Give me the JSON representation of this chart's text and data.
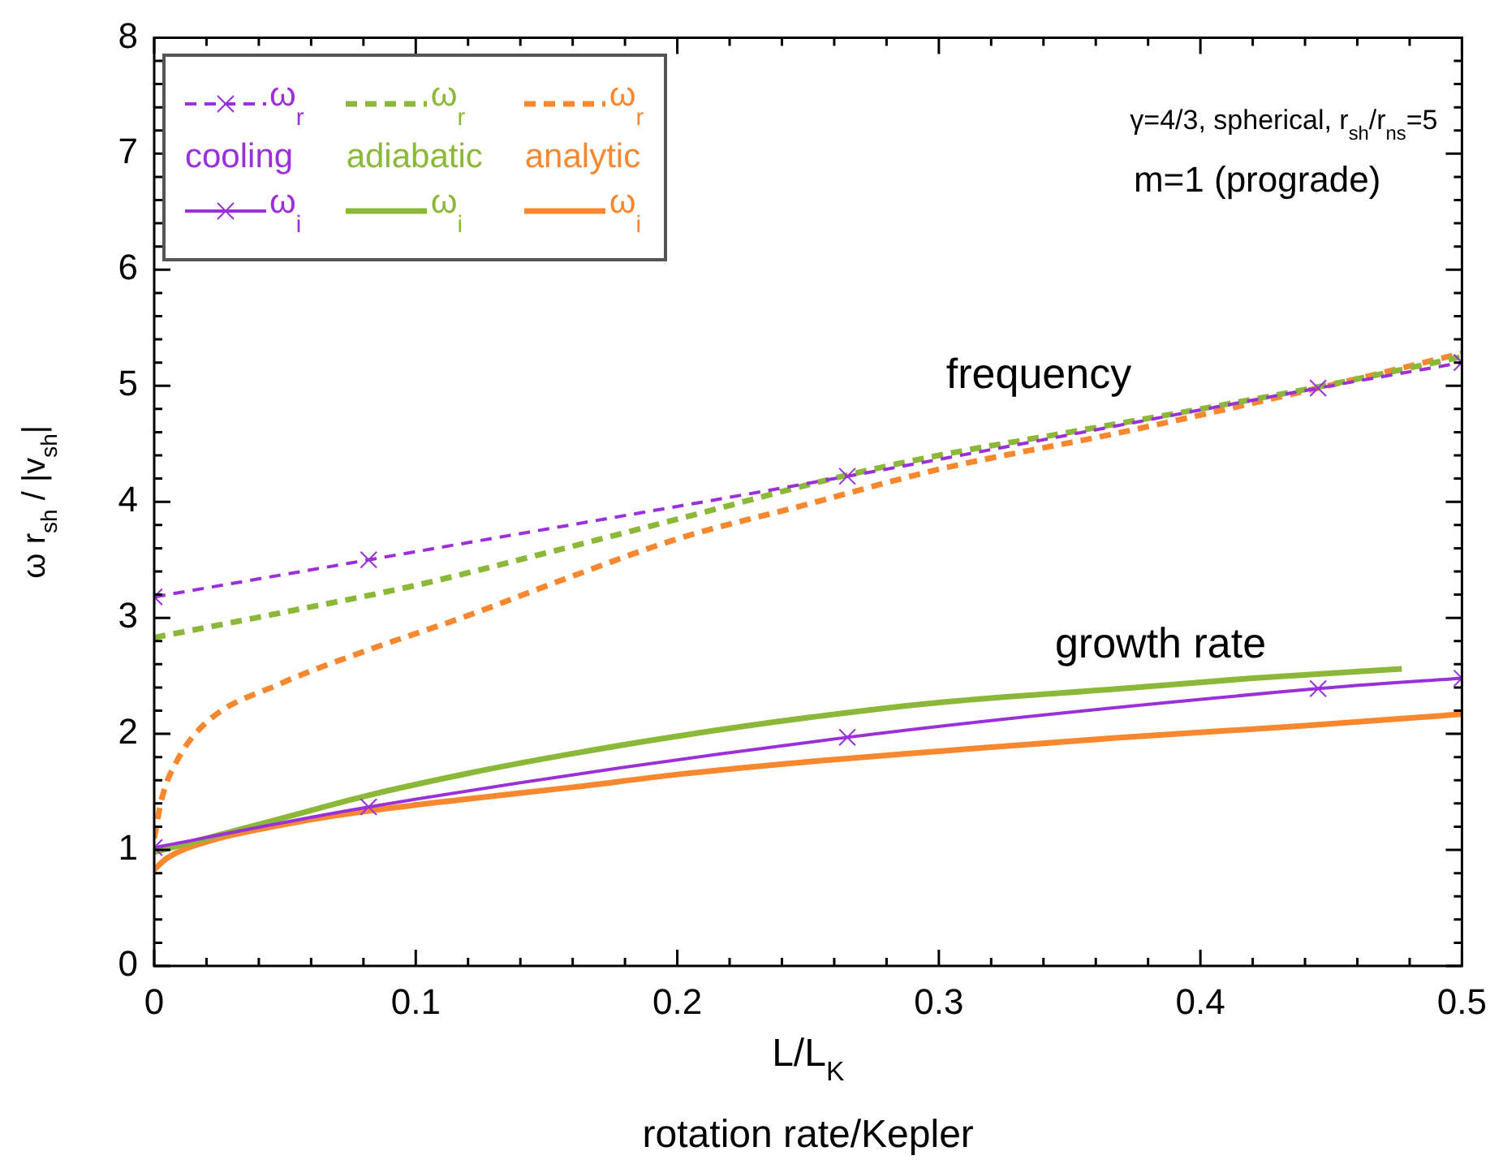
{
  "chart_data": {
    "type": "line",
    "xlabel": "L/L$_{K}$",
    "ylabel": "ω r$_{sh}$ / |v$_{sh}$|",
    "xlim": [
      0,
      0.5
    ],
    "ylim": [
      0,
      8
    ],
    "xticks": [
      0,
      {
        "value": 0.02,
        "label": null
      },
      {
        "value": 0.04,
        "label": null
      },
      {
        "value": 0.06,
        "label": null
      },
      {
        "value": 0.08,
        "label": null
      },
      0.1,
      {
        "value": 0.12,
        "label": null
      },
      {
        "value": 0.14,
        "label": null
      },
      {
        "value": 0.16,
        "label": null
      },
      {
        "value": 0.18,
        "label": null
      },
      0.2,
      {
        "value": 0.22,
        "label": null
      },
      {
        "value": 0.24,
        "label": null
      },
      {
        "value": 0.26,
        "label": null
      },
      {
        "value": 0.28,
        "label": null
      },
      0.3,
      {
        "value": 0.32,
        "label": null
      },
      {
        "value": 0.34,
        "label": null
      },
      {
        "value": 0.36,
        "label": null
      },
      {
        "value": 0.38,
        "label": null
      },
      0.4,
      {
        "value": 0.42,
        "label": null
      },
      {
        "value": 0.44,
        "label": null
      },
      {
        "value": 0.46,
        "label": null
      },
      {
        "value": 0.48,
        "label": null
      },
      0.5
    ],
    "yticks": [
      0,
      {
        "value": 0.2,
        "label": null
      },
      {
        "value": 0.4,
        "label": null
      },
      {
        "value": 0.6,
        "label": null
      },
      {
        "value": 0.8,
        "label": null
      },
      1,
      {
        "value": 1.2,
        "label": null
      },
      {
        "value": 1.4,
        "label": null
      },
      {
        "value": 1.6,
        "label": null
      },
      {
        "value": 1.8,
        "label": null
      },
      2,
      {
        "value": 2.2,
        "label": null
      },
      {
        "value": 2.4,
        "label": null
      },
      {
        "value": 2.6,
        "label": null
      },
      {
        "value": 2.8,
        "label": null
      },
      3,
      {
        "value": 3.2,
        "label": null
      },
      {
        "value": 3.4,
        "label": null
      },
      {
        "value": 3.6,
        "label": null
      },
      {
        "value": 3.8,
        "label": null
      },
      4,
      {
        "value": 4.2,
        "label": null
      },
      {
        "value": 4.4,
        "label": null
      },
      {
        "value": 4.6,
        "label": null
      },
      {
        "value": 4.8,
        "label": null
      },
      5,
      {
        "value": 5.2,
        "label": null
      },
      {
        "value": 5.4,
        "label": null
      },
      {
        "value": 5.6,
        "label": null
      },
      {
        "value": 5.8,
        "label": null
      },
      6,
      {
        "value": 6.2,
        "label": null
      },
      {
        "value": 6.4,
        "label": null
      },
      {
        "value": 6.6,
        "label": null
      },
      {
        "value": 6.8,
        "label": null
      },
      7,
      {
        "value": 7.2,
        "label": null
      },
      {
        "value": 7.4,
        "label": null
      },
      {
        "value": 7.6,
        "label": null
      },
      {
        "value": 7.8,
        "label": null
      },
      8
    ],
    "grid": false,
    "legend": "top left",
    "series": [
      {
        "name": "ω$_{r}$",
        "color": "#9b30d9",
        "line_style": "dashed",
        "marker": "cross",
        "x": [
          0,
          0.082,
          0.265,
          0.445,
          0.5
        ],
        "values": [
          3.18,
          3.5,
          4.22,
          4.98,
          5.2
        ]
      },
      {
        "name": "ω$_{r}$",
        "color": "#8cb83a",
        "line_style": "dashed",
        "marker": "none",
        "x": [
          0,
          0.05,
          0.1,
          0.15,
          0.2,
          0.265,
          0.3,
          0.35,
          0.4,
          0.445,
          0.5
        ],
        "values": [
          2.83,
          3.05,
          3.28,
          3.56,
          3.85,
          4.23,
          4.4,
          4.6,
          4.8,
          4.99,
          5.25
        ]
      },
      {
        "name": "ω$_{r}$",
        "color": "#f7882f",
        "line_style": "dashed",
        "marker": "none",
        "x": [
          0,
          0.003,
          0.009,
          0.02,
          0.048,
          0.079,
          0.12,
          0.16,
          0.2,
          0.25,
          0.3,
          0.37,
          0.445,
          0.5
        ],
        "values": [
          1.1,
          1.45,
          1.78,
          2.1,
          2.43,
          2.7,
          3.02,
          3.36,
          3.68,
          3.98,
          4.28,
          4.6,
          4.98,
          5.28
        ]
      },
      {
        "name": "ω$_{i}$",
        "color": "#9b30d9",
        "line_style": "solid",
        "marker": "cross",
        "x": [
          0,
          0.082,
          0.265,
          0.445,
          0.5
        ],
        "values": [
          1.02,
          1.37,
          1.97,
          2.39,
          2.48
        ]
      },
      {
        "name": "ω$_{i}$",
        "color": "#8cb83a",
        "line_style": "solid",
        "marker": "none",
        "x": [
          0,
          0.02,
          0.05,
          0.08,
          0.12,
          0.16,
          0.2,
          0.25,
          0.3,
          0.37,
          0.42,
          0.477
        ],
        "values": [
          0.98,
          1.1,
          1.28,
          1.46,
          1.66,
          1.83,
          1.98,
          2.14,
          2.27,
          2.39,
          2.48,
          2.56
        ]
      },
      {
        "name": "ω$_{i}$",
        "color": "#f7882f",
        "line_style": "solid",
        "marker": "none",
        "x": [
          0,
          0.005,
          0.02,
          0.05,
          0.08,
          0.12,
          0.16,
          0.2,
          0.25,
          0.3,
          0.37,
          0.44,
          0.5
        ],
        "values": [
          0.83,
          0.93,
          1.07,
          1.22,
          1.33,
          1.44,
          1.54,
          1.65,
          1.76,
          1.85,
          1.97,
          2.07,
          2.17
        ]
      }
    ],
    "annotations": [
      "γ=4/3, spherical, r$_{sh}$/r$_{ns}$=5",
      "m=1 (prograde)",
      "cooling",
      "adiabatic",
      "analytic",
      "rotation rate/Kepler",
      "frequency",
      "growth rate"
    ]
  }
}
